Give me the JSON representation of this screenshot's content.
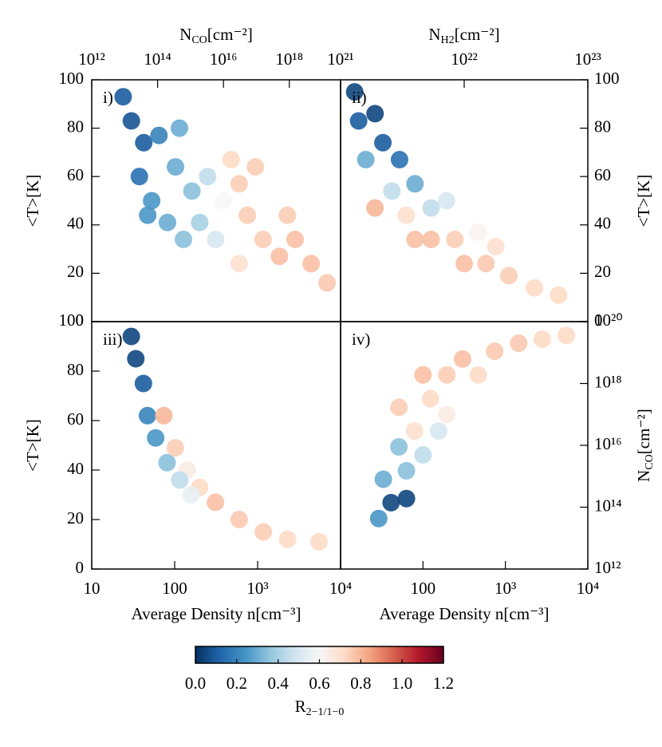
{
  "chart_data": [
    {
      "type": "scatter",
      "label": "i)",
      "xlabel": {
        "base": "N",
        "sub": "CO",
        "unit": "[cm⁻²]"
      },
      "ylabel": "<T>[K]",
      "x_axis": "top",
      "xscale": "log",
      "xlim": [
        1000000000000.0,
        3.6e+19
      ],
      "xticks": [
        {
          "value": 1000000000000.0,
          "label": "10¹²"
        },
        {
          "value": 100000000000000.0,
          "label": "10¹⁴"
        },
        {
          "value": 1e+16,
          "label": "10¹⁶"
        },
        {
          "value": 1e+18,
          "label": "10¹⁸"
        }
      ],
      "y_axis": "left",
      "yscale": "linear",
      "ylim": [
        0,
        100
      ],
      "yticks": [
        0,
        20,
        40,
        60,
        80,
        100
      ],
      "x": [
        9000000000000.0,
        16000000000000.0,
        38000000000000.0,
        110000000000000.0,
        28000000000000.0,
        66000000000000.0,
        200000000000000.0,
        350000000000000.0,
        1100000000000000.0,
        1900000000000000.0,
        5800000000000000.0,
        3300000000000000.0,
        1e+16,
        3e+16,
        5.3e+16,
        1.6e+17,
        5e+17,
        9.3e+16,
        1.7e+16,
        1.5e+18,
        4.6e+18,
        1.4e+19,
        8.7e+17,
        460000000000000.0,
        50000000000000.0,
        610000000000000.0,
        3e+16
      ],
      "y": [
        93,
        83,
        74,
        77,
        60,
        50,
        41,
        64,
        54,
        41,
        34,
        60,
        50,
        57,
        44,
        34,
        27,
        64,
        67,
        34,
        24,
        16,
        44,
        80,
        44,
        34,
        24
      ],
      "color_values": [
        0.1,
        0.08,
        0.1,
        0.2,
        0.15,
        0.25,
        0.3,
        0.3,
        0.35,
        0.4,
        0.5,
        0.45,
        0.6,
        0.75,
        0.75,
        0.75,
        0.78,
        0.75,
        0.72,
        0.78,
        0.78,
        0.76,
        0.75,
        0.3,
        0.25,
        0.35,
        0.7
      ]
    },
    {
      "type": "scatter",
      "label": "ii)",
      "xlabel": {
        "base": "N",
        "sub": "H2",
        "unit": "[cm⁻²]"
      },
      "ylabel": "<T>[K]",
      "x_axis": "top",
      "xscale": "log",
      "xlim": [
        1e+21,
        1e+23
      ],
      "xticks": [
        {
          "value": 1e+21,
          "label": "10²¹"
        },
        {
          "value": 1e+22,
          "label": "10²²"
        },
        {
          "value": 1e+23,
          "label": "10²³"
        }
      ],
      "y_axis": "right",
      "yscale": "linear",
      "ylim": [
        0,
        100
      ],
      "yticks": [
        0,
        20,
        40,
        60,
        80,
        100
      ],
      "x": [
        1.3e+21,
        1.4e+21,
        1.9e+21,
        2.2e+21,
        3e+21,
        4e+21,
        1.6e+21,
        2.6e+21,
        1.9e+21,
        3.4e+21,
        5.4e+21,
        5.4e+21,
        8.4e+21,
        1e+22,
        1.5e+22,
        2.3e+22,
        3.7e+22,
        5.8e+22,
        7.2e+21,
        1.3e+22,
        4e+21,
        1.8e+22
      ],
      "y": [
        95,
        83,
        86,
        74,
        67,
        57,
        67,
        54,
        47,
        44,
        47,
        34,
        34,
        24,
        24,
        19,
        14,
        11,
        50,
        37,
        34,
        31
      ],
      "color_values": [
        0.05,
        0.1,
        0.05,
        0.1,
        0.15,
        0.3,
        0.3,
        0.45,
        0.8,
        0.7,
        0.45,
        0.78,
        0.75,
        0.78,
        0.76,
        0.75,
        0.72,
        0.72,
        0.5,
        0.62,
        0.78,
        0.7
      ]
    },
    {
      "type": "scatter",
      "label": "iii)",
      "xlabel": "Average Density n[cm⁻³]",
      "ylabel": "<T>[K]",
      "x_axis": "bottom",
      "xscale": "log",
      "xlim": [
        10,
        10000
      ],
      "xticks": [
        10,
        100,
        {
          "value": 1000,
          "label": "10³"
        },
        {
          "value": 10000,
          "label": "10⁴"
        }
      ],
      "y_axis": "left",
      "yscale": "linear",
      "ylim": [
        0,
        100
      ],
      "yticks": [
        0,
        20,
        40,
        60,
        80,
        100
      ],
      "x": [
        30,
        34,
        42,
        47,
        59,
        81,
        74,
        102,
        141,
        200,
        310,
        600,
        1170,
        2300,
        5500,
        158,
        115
      ],
      "y": [
        94,
        85,
        75,
        62,
        53,
        43,
        62,
        49,
        40,
        33,
        27,
        20,
        15,
        12,
        11,
        30,
        36
      ],
      "color_values": [
        0.05,
        0.05,
        0.1,
        0.2,
        0.25,
        0.35,
        0.8,
        0.75,
        0.65,
        0.72,
        0.78,
        0.76,
        0.75,
        0.72,
        0.72,
        0.55,
        0.45
      ]
    },
    {
      "type": "scatter",
      "label": "iv)",
      "xlabel": "Average Density n[cm⁻³]",
      "ylabel": {
        "base": "N",
        "sub": "CO",
        "unit": "[cm⁻²]"
      },
      "x_axis": "bottom",
      "xscale": "log",
      "xlim": [
        10,
        10000
      ],
      "xticks": [
        100,
        {
          "value": 1000,
          "label": "10³"
        },
        {
          "value": 10000,
          "label": "10⁴"
        }
      ],
      "y_axis": "right",
      "yscale": "log",
      "ylim": [
        1000000000000.0,
        1e+20
      ],
      "yticks": [
        {
          "value": 1000000000000.0,
          "label": "10¹²"
        },
        {
          "value": 100000000000000.0,
          "label": "10¹⁴"
        },
        {
          "value": 1e+16,
          "label": "10¹⁶"
        },
        {
          "value": 1e+18,
          "label": "10¹⁸"
        },
        {
          "value": 1e+20,
          "label": "10²⁰"
        }
      ],
      "x": [
        41,
        63,
        33,
        63,
        100,
        51,
        79,
        51,
        123,
        100,
        195,
        302,
        195,
        468,
        741,
        1450,
        2800,
        5500,
        155,
        29
      ],
      "y": [
        140000000000000.0,
        190000000000000.0,
        800000000000000.0,
        1500000000000000.0,
        4900000000000000.0,
        8900000000000000.0,
        2.9e+16,
        1.7e+17,
        3.2e+17,
        1.9e+18,
        1.9e+18,
        6.2e+18,
        1e+17,
        1.9e+18,
        1.1e+19,
        2e+19,
        2.7e+19,
        3.6e+19,
        2.9e+16,
        43000000000000.0
      ],
      "color_values": [
        0.05,
        0.05,
        0.3,
        0.35,
        0.45,
        0.35,
        0.7,
        0.75,
        0.72,
        0.78,
        0.75,
        0.78,
        0.65,
        0.72,
        0.76,
        0.76,
        0.72,
        0.72,
        0.5,
        0.25
      ]
    },
    {
      "type": "colorbar",
      "clim": [
        0,
        1.2
      ],
      "ticks": [
        {
          "value": 0,
          "label": "0.0"
        },
        0.2,
        0.4,
        0.6,
        0.8,
        {
          "value": 1,
          "label": "1.0"
        },
        1.2
      ],
      "colors": [
        "#053061",
        "#2166ac",
        "#4393c3",
        "#92c5de",
        "#d1e5f0",
        "#f7f7f7",
        "#fddbc7",
        "#f4a582",
        "#d6604d",
        "#b2182b",
        "#67001f"
      ],
      "label": {
        "base": "R",
        "sub": "2−1/1−0"
      }
    }
  ]
}
